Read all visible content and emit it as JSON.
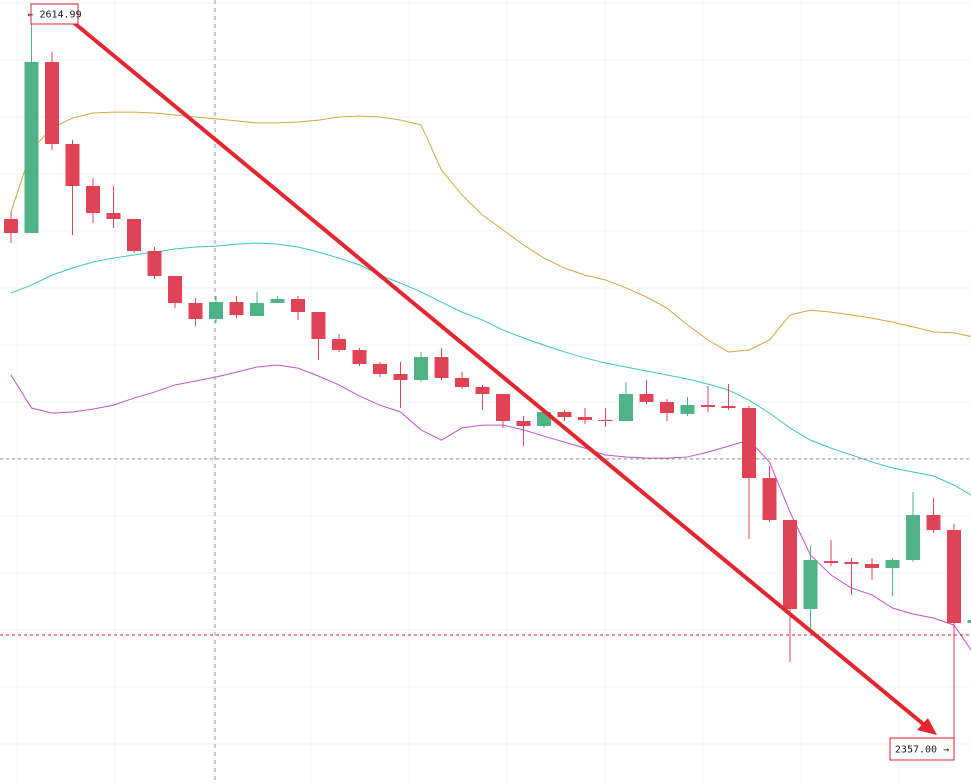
{
  "chart_data": {
    "type": "candlestick",
    "ylim": [
      2344.7,
      2619.9
    ],
    "up_color": "#4fb387",
    "down_color": "#e04356",
    "open": [
      2542.93,
      2538.01,
      2598.12,
      2569.29,
      2554.53,
      2545.04,
      2542.93,
      2531.68,
      2522.9,
      2513.41,
      2507.78,
      2513.76,
      2508.84,
      2513.41,
      2514.81,
      2510.24,
      2500.75,
      2496.88,
      2491.96,
      2488.45,
      2486.34,
      2494.42,
      2487.04,
      2483.88,
      2481.42,
      2471.93,
      2470.17,
      2475.09,
      2473.33,
      2472.28,
      2471.93,
      2481.42,
      2478.61,
      2474.39,
      2477.55,
      2477.2,
      2476.5,
      2451.89,
      2437.13,
      2405.85,
      2422.72,
      2422.37,
      2421.66,
      2420.26,
      2423.07,
      2438.89,
      2433.61,
      2400.93
    ],
    "high": [
      2545.39,
      2614.99,
      2601.63,
      2570.7,
      2557.34,
      2554.53,
      2542.93,
      2533.09,
      2522.9,
      2515.16,
      2515.87,
      2515.87,
      2517.27,
      2515.87,
      2515.87,
      2510.24,
      2502.51,
      2497.59,
      2492.67,
      2492.67,
      2496.18,
      2497.59,
      2489.15,
      2484.58,
      2481.42,
      2473.69,
      2475.79,
      2475.79,
      2476.5,
      2476.5,
      2485.64,
      2486.34,
      2479.66,
      2480.36,
      2484.23,
      2484.93,
      2477.2,
      2456.11,
      2437.13,
      2427.99,
      2430.1,
      2423.77,
      2423.77,
      2423.77,
      2446.97,
      2444.86,
      2435.72,
      2402.5
    ],
    "low": [
      2534.5,
      2538.01,
      2567.18,
      2537.31,
      2541.53,
      2539.77,
      2530.98,
      2521.84,
      2511.65,
      2505.32,
      2506.38,
      2508.13,
      2508.84,
      2513.41,
      2507.43,
      2493.37,
      2496.18,
      2491.26,
      2487.39,
      2476.5,
      2485.64,
      2486.34,
      2483.18,
      2475.79,
      2469.47,
      2463.14,
      2469.47,
      2471.93,
      2470.87,
      2469.82,
      2471.93,
      2477.9,
      2471.93,
      2473.69,
      2475.09,
      2475.79,
      2430.45,
      2436.43,
      2387.22,
      2398.46,
      2420.96,
      2410.77,
      2416.04,
      2410.42,
      2422.37,
      2432.56,
      2357.0,
      2400.5
    ],
    "close": [
      2538.01,
      2598.12,
      2569.29,
      2554.53,
      2545.04,
      2542.93,
      2531.68,
      2522.9,
      2513.41,
      2507.78,
      2513.76,
      2509.19,
      2513.41,
      2514.81,
      2510.24,
      2500.75,
      2496.88,
      2491.96,
      2488.45,
      2486.34,
      2494.42,
      2487.04,
      2483.88,
      2481.42,
      2471.93,
      2470.17,
      2475.09,
      2473.33,
      2472.28,
      2471.93,
      2481.42,
      2478.61,
      2474.74,
      2477.55,
      2476.85,
      2476.5,
      2451.89,
      2437.13,
      2405.85,
      2423.07,
      2422.02,
      2421.66,
      2420.26,
      2423.07,
      2438.89,
      2433.61,
      2400.93,
      2401.98
    ],
    "bands": [
      {
        "color": "#d4a63c",
        "values": [
          2545.4,
          2567.2,
          2574.9,
          2578.4,
          2580.2,
          2580.5,
          2580.5,
          2580.2,
          2579.5,
          2578.8,
          2578.1,
          2577.4,
          2576.7,
          2576.7,
          2577.0,
          2577.7,
          2578.8,
          2579.1,
          2578.8,
          2577.7,
          2576.0,
          2560.1,
          2551.4,
          2544.3,
          2539.1,
          2533.8,
          2529.2,
          2525.7,
          2523.2,
          2521.5,
          2518.7,
          2515.5,
          2511.6,
          2505.7,
          2500.4,
          2496.2,
          2496.9,
          2500.4,
          2509.2,
          2510.9,
          2510.2,
          2509.2,
          2508.1,
          2506.7,
          2505.0,
          2503.2,
          2502.9,
          2501.4
        ]
      },
      {
        "color": "#3cc8b8",
        "values": [
          2516.9,
          2519.7,
          2523.2,
          2525.7,
          2527.8,
          2529.2,
          2530.3,
          2531.3,
          2532.4,
          2533.1,
          2533.4,
          2534.1,
          2534.5,
          2534.1,
          2533.1,
          2531.3,
          2529.2,
          2526.8,
          2523.2,
          2520.4,
          2517.3,
          2513.7,
          2510.2,
          2507.4,
          2503.9,
          2501.1,
          2498.6,
          2496.2,
          2494.1,
          2492.3,
          2490.9,
          2489.5,
          2488.1,
          2486.7,
          2484.9,
          2482.8,
          2479.3,
          2474.7,
          2469.5,
          2465.2,
          2462.4,
          2460.0,
          2457.5,
          2455.4,
          2454.0,
          2452.6,
          2449.4,
          2445.2
        ]
      },
      {
        "color": "#c452cf",
        "values": [
          2488.1,
          2476.5,
          2474.7,
          2475.1,
          2476.1,
          2477.5,
          2480.0,
          2482.1,
          2484.6,
          2486.0,
          2487.4,
          2489.1,
          2490.9,
          2491.6,
          2490.5,
          2487.7,
          2484.6,
          2480.7,
          2477.5,
          2475.1,
          2468.8,
          2465.2,
          2469.5,
          2470.5,
          2470.5,
          2468.8,
          2466.6,
          2464.5,
          2462.4,
          2460.0,
          2459.3,
          2458.9,
          2458.9,
          2459.3,
          2461.0,
          2463.1,
          2465.2,
          2457.5,
          2439.9,
          2424.8,
          2417.8,
          2413.2,
          2410.8,
          2406.2,
          2404.1,
          2402.7,
          2400.2,
          2389.7
        ]
      }
    ],
    "price_lines": [
      {
        "value": 2458.6,
        "color": "#8a8e99"
      },
      {
        "value": 2396.7,
        "color": "#d8232a"
      }
    ],
    "annotations": [
      {
        "text": "← 2614.99"
      },
      {
        "text": "2357.00 →"
      }
    ]
  }
}
